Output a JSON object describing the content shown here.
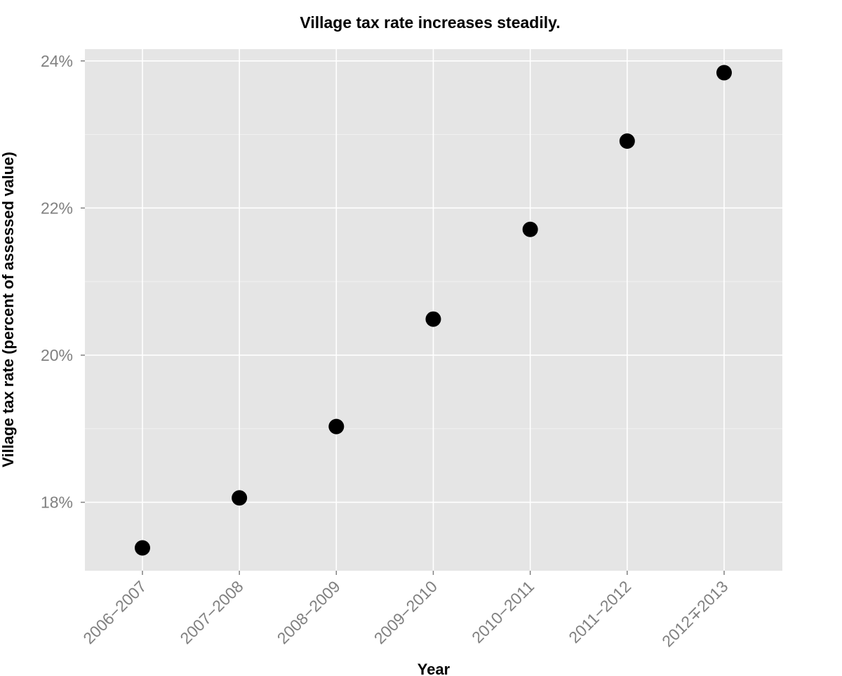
{
  "chart_data": {
    "type": "scatter",
    "title": "Village tax rate increases steadily.",
    "xlabel": "Year",
    "ylabel": "Village tax rate (percent of assessed value)",
    "categories": [
      "2006−2007",
      "2007−2008",
      "2008−2009",
      "2009−2010",
      "2010−2011",
      "2011−2012",
      "2012∓2013"
    ],
    "values": [
      17.38,
      18.06,
      19.03,
      20.49,
      21.71,
      22.91,
      23.84
    ],
    "ylim": [
      17.07,
      24.16
    ],
    "yticks": [
      18,
      20,
      22,
      24
    ],
    "ytick_labels": [
      "18%",
      "20%",
      "22%",
      "24%"
    ],
    "grid": true,
    "legend": "none"
  },
  "colors": {
    "panel_background": "#e5e5e5",
    "grid_major": "#ffffff",
    "grid_minor": "#f2f2f2",
    "point": "#000000",
    "tick_text": "#808080",
    "tick_mark": "#808080"
  }
}
